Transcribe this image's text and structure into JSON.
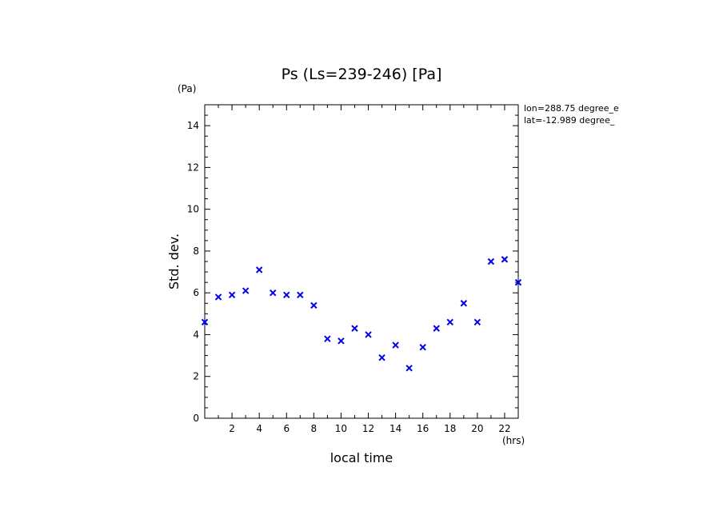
{
  "chart_data": {
    "type": "scatter",
    "title": "Ps (Ls=239-246) [Pa]",
    "xlabel": "local time",
    "ylabel": "Std. dev.",
    "xunit": "(hrs)",
    "yunit": "(Pa)",
    "xlim": [
      0,
      23
    ],
    "ylim": [
      0,
      15
    ],
    "x_major_ticks": [
      2,
      4,
      6,
      8,
      10,
      12,
      14,
      16,
      18,
      20,
      22
    ],
    "y_major_ticks": [
      0,
      2,
      4,
      6,
      8,
      10,
      12,
      14
    ],
    "annotations": [
      "lon=288.75 degree_e",
      "lat=-12.989 degree_"
    ],
    "marker": "x",
    "marker_color": "#0000ee",
    "x": [
      0,
      1,
      2,
      3,
      4,
      5,
      6,
      7,
      8,
      9,
      10,
      11,
      12,
      13,
      14,
      15,
      16,
      17,
      18,
      19,
      20,
      21,
      22,
      23
    ],
    "y": [
      4.6,
      5.8,
      5.9,
      6.1,
      7.1,
      6.0,
      5.9,
      5.9,
      5.4,
      3.8,
      3.7,
      4.3,
      4.0,
      2.9,
      3.5,
      2.4,
      3.4,
      4.3,
      4.6,
      5.5,
      4.6,
      7.5,
      7.6,
      6.5
    ]
  }
}
